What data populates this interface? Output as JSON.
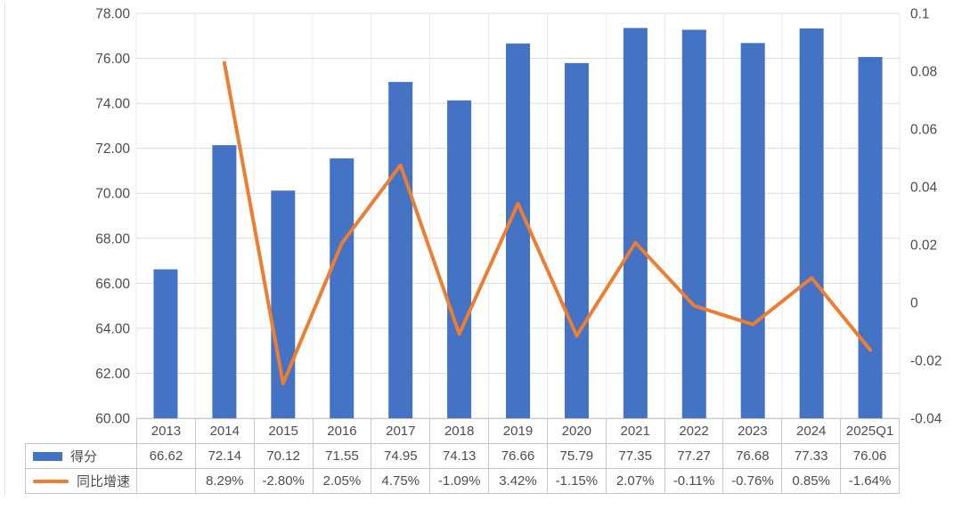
{
  "chart_data": {
    "type": "bar+line",
    "categories": [
      "2013",
      "2014",
      "2015",
      "2016",
      "2017",
      "2018",
      "2019",
      "2020",
      "2021",
      "2022",
      "2023",
      "2024",
      "2025Q1"
    ],
    "series": [
      {
        "name": "得分",
        "type": "bar",
        "axis": "left",
        "color": "#4472C4",
        "values": [
          66.62,
          72.14,
          70.12,
          71.55,
          74.95,
          74.13,
          76.66,
          75.79,
          77.35,
          77.27,
          76.68,
          77.33,
          76.06
        ]
      },
      {
        "name": "同比增速",
        "type": "line",
        "axis": "right",
        "color": "#ED7D31",
        "values": [
          null,
          0.0829,
          -0.028,
          0.0205,
          0.0475,
          -0.0109,
          0.0342,
          -0.0115,
          0.0207,
          -0.0011,
          -0.0076,
          0.0085,
          -0.0164
        ],
        "labels": [
          "",
          "8.29%",
          "-2.80%",
          "2.05%",
          "4.75%",
          "-1.09%",
          "3.42%",
          "-1.15%",
          "2.07%",
          "-0.11%",
          "-0.76%",
          "0.85%",
          "-1.64%"
        ]
      }
    ],
    "left_axis": {
      "min": 60,
      "max": 78,
      "step": 2,
      "tick_labels": [
        "78.00",
        "76.00",
        "74.00",
        "72.00",
        "70.00",
        "68.00",
        "66.00",
        "64.00",
        "62.00",
        "60.00"
      ]
    },
    "right_axis": {
      "min": -0.04,
      "max": 0.1,
      "step": 0.02,
      "tick_labels": [
        "0.1",
        "0.08",
        "0.06",
        "0.04",
        "0.02",
        "0",
        "-0.02",
        "-0.04"
      ]
    },
    "grid": true,
    "legend_position": "table-left",
    "colors": {
      "axis_text": "#4d4d4d",
      "grid_h": "#dcdcdc",
      "grid_v": "#ebebeb",
      "table_border": "#c6c6c6"
    }
  }
}
